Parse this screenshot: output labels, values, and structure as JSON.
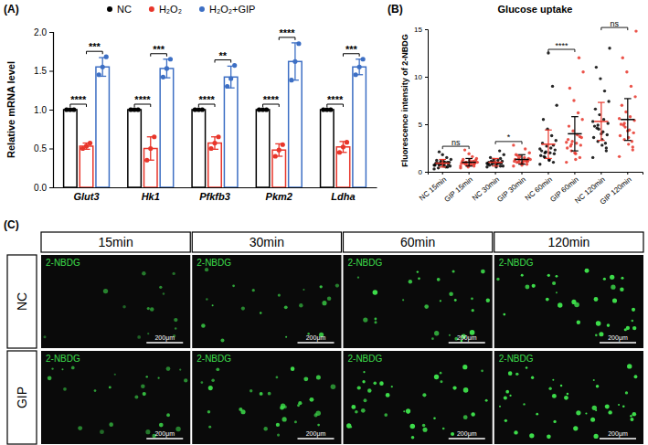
{
  "chart_data": [
    {
      "type": "bar",
      "panel_label": "(A)",
      "ylabel": "Relative mRNA level",
      "categories": [
        "Glut3",
        "Hk1",
        "Pfkfb3",
        "Pkm2",
        "Ldha"
      ],
      "series": [
        {
          "name": "NC",
          "color": "#000000",
          "values": [
            1,
            1,
            1,
            1,
            1
          ],
          "errors": [
            0,
            0,
            0,
            0,
            0
          ],
          "points": [
            [
              1,
              1,
              1
            ],
            [
              1,
              1,
              1
            ],
            [
              1,
              1,
              1
            ],
            [
              1,
              1,
              1
            ],
            [
              1,
              1,
              1
            ]
          ]
        },
        {
          "name": "H₂O₂",
          "color": "#e8352a",
          "values": [
            0.53,
            0.5,
            0.57,
            0.48,
            0.52
          ],
          "errors": [
            0.04,
            0.15,
            0.08,
            0.08,
            0.07
          ],
          "points": [
            [
              0.5,
              0.53,
              0.57
            ],
            [
              0.35,
              0.5,
              0.65
            ],
            [
              0.5,
              0.57,
              0.65
            ],
            [
              0.4,
              0.48,
              0.55
            ],
            [
              0.45,
              0.52,
              0.58
            ]
          ]
        },
        {
          "name": "H₂O₂+GIP",
          "color": "#3d6fc4",
          "values": [
            1.55,
            1.53,
            1.42,
            1.62,
            1.55
          ],
          "errors": [
            0.12,
            0.12,
            0.14,
            0.24,
            0.1
          ],
          "points": [
            [
              1.45,
              1.55,
              1.68
            ],
            [
              1.42,
              1.53,
              1.65
            ],
            [
              1.3,
              1.4,
              1.57
            ],
            [
              1.38,
              1.62,
              1.85
            ],
            [
              1.45,
              1.55,
              1.65
            ]
          ]
        }
      ],
      "ylim": [
        0,
        2
      ],
      "yticks": [
        {
          "value": 0,
          "label": "0.0"
        },
        {
          "value": 0.5,
          "label": "0.5"
        },
        {
          "value": 1,
          "label": "1.0"
        },
        {
          "value": 1.5,
          "label": "1.5"
        },
        {
          "value": 2,
          "label": "2.0"
        }
      ],
      "legend": "top",
      "annotations": [
        {
          "text": "****",
          "category": 0,
          "groups": [
            0,
            1
          ]
        },
        {
          "text": "***",
          "category": 0,
          "groups": [
            1,
            2
          ]
        },
        {
          "text": "****",
          "category": 1,
          "groups": [
            0,
            1
          ]
        },
        {
          "text": "***",
          "category": 1,
          "groups": [
            1,
            2
          ]
        },
        {
          "text": "****",
          "category": 2,
          "groups": [
            0,
            1
          ]
        },
        {
          "text": "**",
          "category": 2,
          "groups": [
            1,
            2
          ]
        },
        {
          "text": "****",
          "category": 3,
          "groups": [
            0,
            1
          ]
        },
        {
          "text": "****",
          "category": 3,
          "groups": [
            1,
            2
          ]
        },
        {
          "text": "****",
          "category": 4,
          "groups": [
            0,
            1
          ]
        },
        {
          "text": "***",
          "category": 4,
          "groups": [
            1,
            2
          ]
        }
      ]
    },
    {
      "type": "scatter",
      "panel_label": "(B)",
      "title": "Glucose uptake",
      "ylabel": "Fluorescence intensity of 2-NBDG",
      "categories": [
        "NC 15min",
        "GIP 15min",
        "NC 30min",
        "GIP 30min",
        "NC 60min",
        "GIP 60min",
        "NC 120min",
        "GIP 120min"
      ],
      "colors": [
        "#000000",
        "#e8352a",
        "#000000",
        "#e8352a",
        "#000000",
        "#e8352a",
        "#000000",
        "#e8352a"
      ],
      "values": [
        [
          0.3,
          0.5,
          0.6,
          0.7,
          0.7,
          0.8,
          0.8,
          0.9,
          0.9,
          1.0,
          1.0,
          1.1,
          1.2,
          0.6,
          0.5,
          0.8,
          0.9,
          1.3,
          1.5,
          1.8,
          0.4,
          0.7,
          1.0,
          1.1,
          2.1
        ],
        [
          0.4,
          0.6,
          0.7,
          0.8,
          0.9,
          0.9,
          1.0,
          1.0,
          1.1,
          1.2,
          0.8,
          0.7,
          1.3,
          1.4,
          1.6,
          0.5,
          0.9,
          1.0,
          1.1,
          1.9,
          2.3,
          0.6,
          0.8,
          1.2,
          1.0
        ],
        [
          0.5,
          0.6,
          0.7,
          0.8,
          0.8,
          0.9,
          0.9,
          1.0,
          1.0,
          1.1,
          1.2,
          1.3,
          0.7,
          0.6,
          0.9,
          1.0,
          1.5,
          1.8,
          2.2,
          0.8,
          1.1,
          0.9,
          1.4,
          0.5,
          1.0
        ],
        [
          0.6,
          0.8,
          0.9,
          1.0,
          1.1,
          1.1,
          1.2,
          1.2,
          1.3,
          1.4,
          1.5,
          1.6,
          1.8,
          2.0,
          2.4,
          0.9,
          1.0,
          1.3,
          1.1,
          0.7,
          1.7,
          2.8,
          1.2,
          1.0,
          1.4
        ],
        [
          0.8,
          1.0,
          1.3,
          1.5,
          1.7,
          1.9,
          2.0,
          2.1,
          2.2,
          2.3,
          2.5,
          2.7,
          3.0,
          3.3,
          3.8,
          4.5,
          5.5,
          7.0,
          9.0,
          12.5,
          1.6,
          2.4,
          2.8,
          1.2,
          2.0
        ],
        [
          1.0,
          1.5,
          1.9,
          2.2,
          2.5,
          2.8,
          3.0,
          3.2,
          3.4,
          3.6,
          3.9,
          4.3,
          4.8,
          5.5,
          6.2,
          7.5,
          8.8,
          10.5,
          12.0,
          2.0,
          2.7,
          3.1,
          3.7,
          1.3,
          2.9
        ],
        [
          1.5,
          2.2,
          2.8,
          3.2,
          3.6,
          3.9,
          4.2,
          4.5,
          4.8,
          5.1,
          5.5,
          6.0,
          6.6,
          7.4,
          8.5,
          9.8,
          11.0,
          13.0,
          3.0,
          4.0,
          4.6,
          5.3,
          2.5,
          3.4,
          4.9
        ],
        [
          1.6,
          2.3,
          2.9,
          3.4,
          3.8,
          4.1,
          4.4,
          4.7,
          5.0,
          5.4,
          5.8,
          6.3,
          7.0,
          7.9,
          9.0,
          10.5,
          12.0,
          14.8,
          3.2,
          4.3,
          4.9,
          5.6,
          2.6,
          3.6,
          5.1
        ]
      ],
      "means": [
        0.9,
        1.0,
        1.0,
        1.3,
        2.9,
        4.0,
        5.3,
        5.5
      ],
      "errors": [
        0.4,
        0.4,
        0.4,
        0.5,
        1.5,
        1.8,
        2.0,
        2.2
      ],
      "ylim": [
        0,
        15
      ],
      "yticks": [
        0,
        5,
        10,
        15
      ],
      "annotations": [
        {
          "text": "ns",
          "groups": [
            0,
            1
          ]
        },
        {
          "text": "*",
          "groups": [
            2,
            3
          ]
        },
        {
          "text": "****",
          "groups": [
            4,
            5
          ]
        },
        {
          "text": "ns",
          "groups": [
            6,
            7
          ]
        }
      ]
    }
  ],
  "image_panel": {
    "panel_label": "(C)",
    "columns": [
      "15min",
      "30min",
      "60min",
      "120min"
    ],
    "rows": [
      "NC",
      "GIP"
    ],
    "channel": "2-NBDG",
    "scale_bar": "200μm"
  }
}
